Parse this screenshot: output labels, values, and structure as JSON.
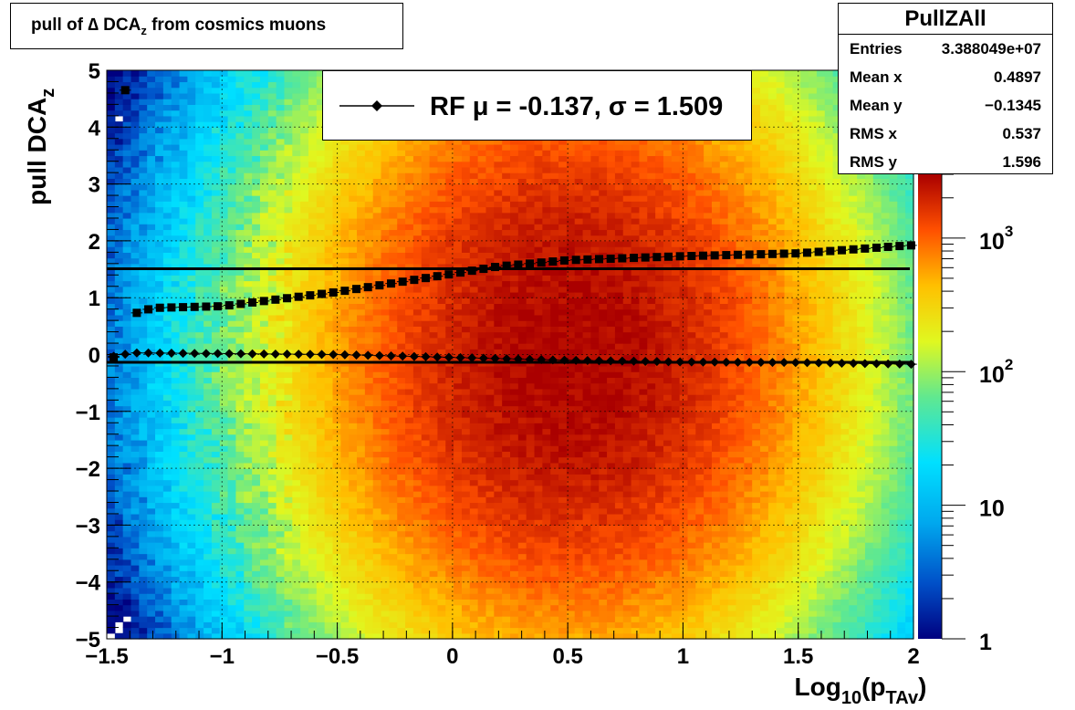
{
  "title": "pull of Δ DCA_z from cosmics muons",
  "title_parts": {
    "main": "pull of ∆ DCA",
    "sub": "z",
    "rest": " from cosmics muons"
  },
  "stats": {
    "name": "PullZAll",
    "rows": [
      {
        "label": "Entries",
        "value": "3.388049e+07"
      },
      {
        "label": "Mean x",
        "value": "0.4897"
      },
      {
        "label": "Mean y",
        "value": "−0.1345"
      },
      {
        "label": "RMS x",
        "value": "0.537"
      },
      {
        "label": "RMS y",
        "value": "1.596"
      }
    ]
  },
  "legend": {
    "entry": "RF μ = -0.137, σ =   1.509"
  },
  "chart_data": {
    "type": "heatmap",
    "xlabel": "Log10(pTAv)",
    "xlabel_parts": {
      "a": "Log",
      "b": "10",
      "c": "(p",
      "d": "TAv",
      "e": ")"
    },
    "ylabel": "pull DCAz",
    "ylabel_parts": {
      "a": "pull DCA",
      "b": "z"
    },
    "xlim": [
      -1.5,
      2
    ],
    "ylim": [
      -5,
      5
    ],
    "x_ticks": [
      "−1.5",
      "−1",
      "−0.5",
      "0",
      "0.5",
      "1",
      "1.5",
      "2"
    ],
    "x_tick_values": [
      -1.5,
      -1,
      -0.5,
      0,
      0.5,
      1,
      1.5,
      2
    ],
    "y_ticks": [
      "5",
      "4",
      "3",
      "2",
      "1",
      "0",
      "−1",
      "−2",
      "−3",
      "−4",
      "−5"
    ],
    "y_tick_values": [
      5,
      4,
      3,
      2,
      1,
      0,
      -1,
      -2,
      -3,
      -4,
      -5
    ],
    "z_scale": "log",
    "z_range": [
      1,
      3000
    ],
    "z_ticks": [
      {
        "value": 1,
        "label": "1"
      },
      {
        "value": 10,
        "label": "10"
      },
      {
        "value": 100,
        "label": "10",
        "sup": "2"
      },
      {
        "value": 1000,
        "label": "10",
        "sup": "3"
      }
    ],
    "grid": true,
    "density": {
      "peak": 3000,
      "x_center": 0.5,
      "x_sigma": 0.55,
      "y_sigma": 1.6
    },
    "series": [
      {
        "name": "RF",
        "marker": "diamond",
        "x_range": [
          -1.47,
          1.99
        ],
        "y_knots": [
          [
            -1.45,
            -0.03
          ],
          [
            -1.4,
            0.03
          ],
          [
            -0.5,
            0.0
          ],
          [
            0.0,
            -0.05
          ],
          [
            0.5,
            -0.1
          ],
          [
            1.0,
            -0.13
          ],
          [
            1.5,
            -0.14
          ],
          [
            1.98,
            -0.17
          ]
        ]
      },
      {
        "name": "sigma",
        "marker": "square",
        "x_range": [
          -1.47,
          1.99
        ],
        "y_knots": [
          [
            -1.45,
            -0.05
          ],
          [
            -1.42,
            4.65
          ],
          [
            -1.38,
            0.72
          ],
          [
            -1.3,
            0.82
          ],
          [
            -1.0,
            0.85
          ],
          [
            -0.5,
            1.1
          ],
          [
            0.0,
            1.42
          ],
          [
            0.2,
            1.55
          ],
          [
            0.5,
            1.66
          ],
          [
            1.0,
            1.73
          ],
          [
            1.5,
            1.78
          ],
          [
            1.98,
            1.92
          ]
        ]
      }
    ],
    "fit_lines": [
      {
        "label": "mu",
        "y": -0.137
      },
      {
        "label": "sigma",
        "y": 1.509
      }
    ]
  }
}
